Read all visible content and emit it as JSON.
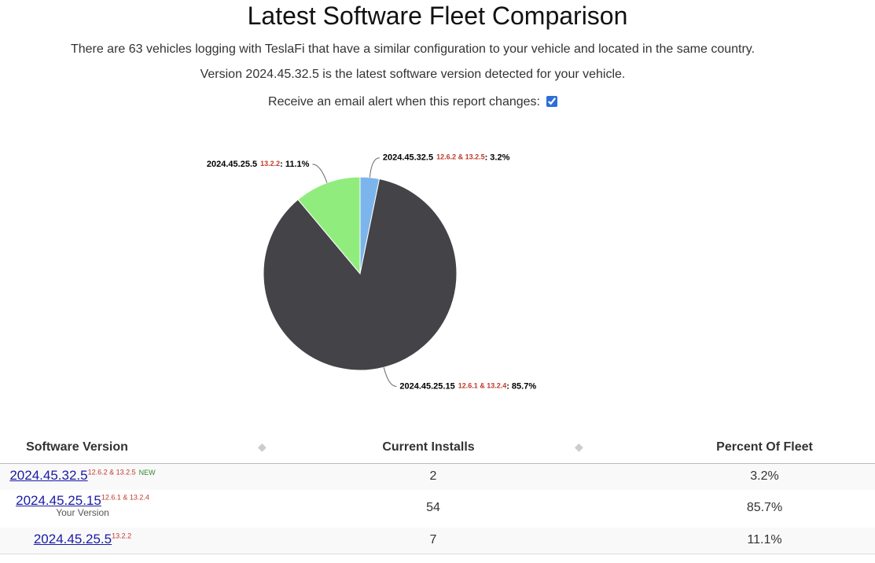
{
  "header": {
    "title": "Latest Software Fleet Comparison",
    "intro": "There are 63 vehicles logging with TeslaFi that have a similar configuration to your vehicle and located in the same country.",
    "version_note": "Version 2024.45.32.5 is the latest software version detected for your vehicle.",
    "alert_label": "Receive an email alert when this report changes:",
    "alert_checked": true
  },
  "chart_data": {
    "type": "pie",
    "categories": [
      "2024.45.32.5",
      "2024.45.25.15",
      "2024.45.25.5"
    ],
    "firmware": [
      "12.6.2 & 13.2.5",
      "12.6.1 & 13.2.4",
      "13.2.2"
    ],
    "label_separator": ":",
    "values": [
      3.2,
      85.7,
      11.1
    ],
    "value_labels": [
      "3.2%",
      "85.7%",
      "11.1%"
    ],
    "colors": [
      "#7cb5ec",
      "#434348",
      "#90ed7d"
    ]
  },
  "table": {
    "columns": [
      "Software Version",
      "Current Installs",
      "Percent Of Fleet"
    ],
    "rows": [
      {
        "version": "2024.45.32.5",
        "firmware": "12.6.2 & 13.2.5",
        "badge": "NEW",
        "installs": 2,
        "percent": "3.2%"
      },
      {
        "version": "2024.45.25.15",
        "firmware": "12.6.1 & 13.2.4",
        "note": "Your Version",
        "installs": 54,
        "percent": "85.7%"
      },
      {
        "version": "2024.45.25.5",
        "firmware": "13.2.2",
        "installs": 7,
        "percent": "11.1%"
      }
    ]
  }
}
